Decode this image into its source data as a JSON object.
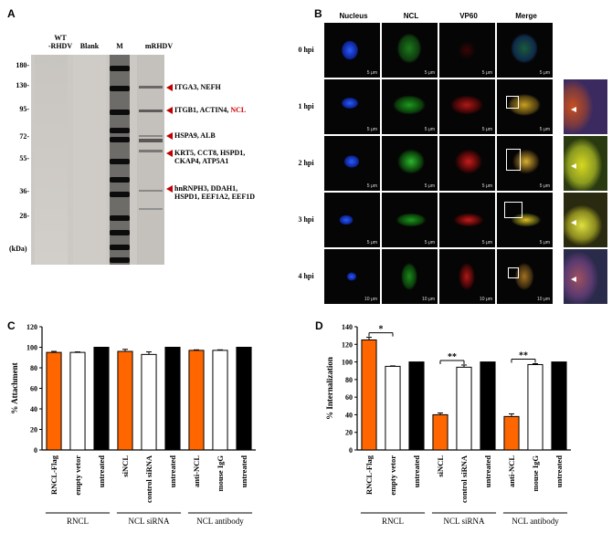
{
  "panel_a": {
    "label": "A",
    "lane_labels": [
      "WT\n-RHDV",
      "Blank",
      "M",
      "mRHDV"
    ],
    "mw_markers": [
      "180-",
      "130-",
      "95-",
      "72-",
      "55-",
      "36-",
      "28-"
    ],
    "unit": "(kDa)",
    "annotations": [
      {
        "parts": [
          {
            "text": "ITGA3, NEFH",
            "color": "#000000"
          }
        ]
      },
      {
        "parts": [
          {
            "text": "ITGB1, ACTIN4, ",
            "color": "#000000"
          },
          {
            "text": "NCL",
            "color": "#cc0000"
          }
        ]
      },
      {
        "parts": [
          {
            "text": "HSPA9, ALB",
            "color": "#000000"
          }
        ]
      },
      {
        "parts": [
          {
            "text": "KRT5, CCT8, HSPD1,\nCKAP4, ATP5A1",
            "color": "#000000"
          }
        ]
      },
      {
        "parts": [
          {
            "text": "hnRNPH3, DDAH1,\nHSPD1, EEF1A2, EEF1D",
            "color": "#000000"
          }
        ]
      }
    ],
    "arrow_color": "#c00000"
  },
  "panel_b": {
    "label": "B",
    "headers": [
      {
        "text": "Nucleus",
        "color": "#3a3aff"
      },
      {
        "text": "NCL",
        "color": "#1ec81e"
      },
      {
        "text": "VP60",
        "color": "#e02020"
      },
      {
        "text": "Merge",
        "color": "#000000"
      }
    ],
    "rows": [
      {
        "label": "0 hpi",
        "scales": [
          "5 μm",
          "5 μm",
          "5 μm",
          "5 μm"
        ]
      },
      {
        "label": "1 hpi",
        "scales": [
          "5 μm",
          "5 μm",
          "5 μm",
          "5 μm"
        ]
      },
      {
        "label": "2 hpi",
        "scales": [
          "5 μm",
          "5 μm",
          "5 μm",
          "5 μm"
        ]
      },
      {
        "label": "3 hpi",
        "scales": [
          "5 μm",
          "5 μm",
          "5 μm",
          "5 μm"
        ]
      },
      {
        "label": "4 hpi",
        "scales": [
          "10 μm",
          "10 μm",
          "10 μm",
          "10 μm"
        ]
      }
    ]
  },
  "chart_data": [
    {
      "type": "bar",
      "panel": "C",
      "ylabel": "% Attachment",
      "ylim": [
        0,
        120
      ],
      "yticks": [
        0,
        20,
        40,
        60,
        80,
        100,
        120
      ],
      "categories": [
        "RNCL-Flag",
        "empty vetor",
        "untreated",
        "siNCL",
        "control siRNA",
        "untreated",
        "anti-NCL",
        "mouse IgG",
        "untreated"
      ],
      "values": [
        95,
        95,
        100,
        96,
        93,
        100,
        97,
        97,
        100
      ],
      "errors": [
        1,
        0.5,
        0,
        2,
        2.5,
        0,
        0.5,
        0.5,
        0
      ],
      "bar_colors": [
        "#ff6600",
        "#ffffff",
        "#000000",
        "#ff6600",
        "#ffffff",
        "#000000",
        "#ff6600",
        "#ffffff",
        "#000000"
      ],
      "groups": [
        {
          "label": "RNCL",
          "start": 0,
          "end": 2
        },
        {
          "label": "NCL siRNA",
          "start": 3,
          "end": 5
        },
        {
          "label": "NCL antibody",
          "start": 6,
          "end": 8
        }
      ],
      "significance": []
    },
    {
      "type": "bar",
      "panel": "D",
      "ylabel": "% Internalization",
      "ylim": [
        0,
        140
      ],
      "yticks": [
        0,
        20,
        40,
        60,
        80,
        100,
        120,
        140
      ],
      "categories": [
        "RNCL-Flag",
        "empty vetor",
        "untreated",
        "siNCL",
        "control siRNA",
        "untreated",
        "anti-NCL",
        "mouse IgG",
        "untreated"
      ],
      "values": [
        125,
        95,
        100,
        40,
        94,
        100,
        38,
        97,
        100
      ],
      "errors": [
        3,
        0.5,
        0,
        2,
        2.5,
        0,
        3,
        1,
        0
      ],
      "bar_colors": [
        "#ff6600",
        "#ffffff",
        "#000000",
        "#ff6600",
        "#ffffff",
        "#000000",
        "#ff6600",
        "#ffffff",
        "#000000"
      ],
      "groups": [
        {
          "label": "RNCL",
          "start": 0,
          "end": 2
        },
        {
          "label": "NCL siRNA",
          "start": 3,
          "end": 5
        },
        {
          "label": "NCL antibody",
          "start": 6,
          "end": 8
        }
      ],
      "significance": [
        {
          "from": 0,
          "to": 1,
          "label": "*"
        },
        {
          "from": 3,
          "to": 4,
          "label": "**"
        },
        {
          "from": 6,
          "to": 7,
          "label": "**"
        }
      ]
    }
  ]
}
